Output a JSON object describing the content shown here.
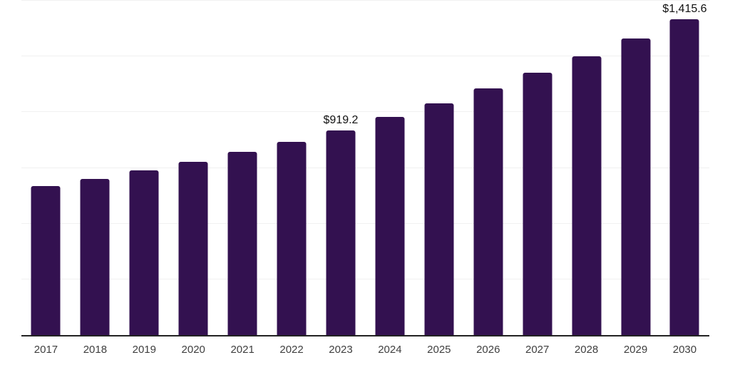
{
  "chart_data": {
    "type": "bar",
    "title": "",
    "xlabel": "",
    "ylabel": "",
    "categories": [
      "2017",
      "2018",
      "2019",
      "2020",
      "2021",
      "2022",
      "2023",
      "2024",
      "2025",
      "2026",
      "2027",
      "2028",
      "2029",
      "2030"
    ],
    "values": [
      670.0,
      702.0,
      738.0,
      777.0,
      822.0,
      866.0,
      919.2,
      977.7,
      1039.9,
      1106.0,
      1176.4,
      1251.2,
      1330.8,
      1415.6
    ],
    "data_labels": [
      "",
      "",
      "",
      "",
      "",
      "",
      "$919.2",
      "",
      "",
      "",
      "",
      "",
      "",
      "$1,415.6"
    ],
    "ylim": [
      0,
      1500
    ],
    "gridline_values": [
      250,
      500,
      750,
      1000,
      1250,
      1500
    ],
    "grid": "horizontal",
    "legend": "none",
    "bar_color": "#331150",
    "gridline_color": "#f1f1f1",
    "axis_line_color": "#222222",
    "tick_label_color": "#3f3f3f",
    "data_label_color": "#111111"
  }
}
